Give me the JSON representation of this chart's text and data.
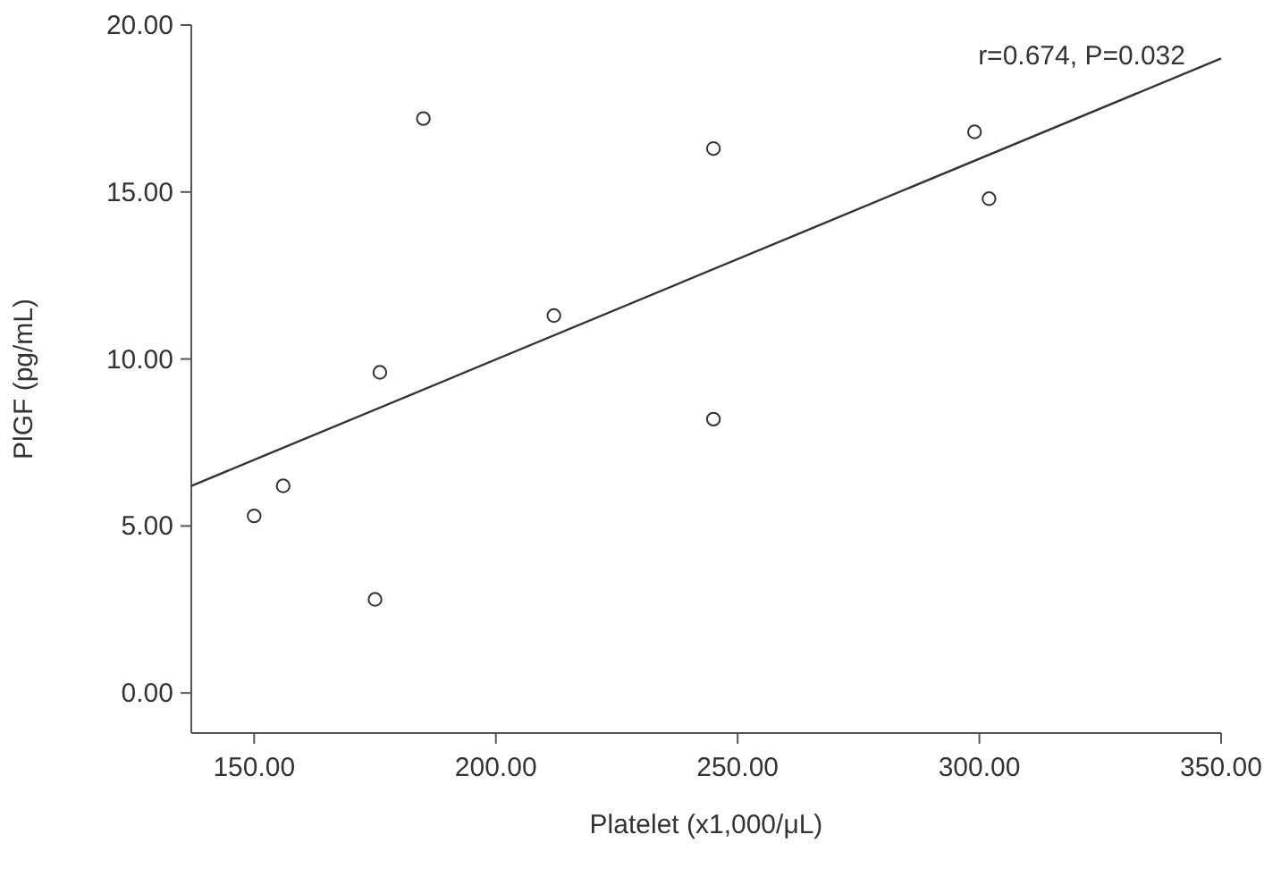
{
  "chart_data": {
    "type": "scatter",
    "xlabel": "Platelet (x1,000/μL)",
    "ylabel": "PlGF (pg/mL)",
    "xlim": [
      137,
      350
    ],
    "ylim": [
      -1.2,
      20
    ],
    "xticks": [
      {
        "value": 150,
        "label": "150.00"
      },
      {
        "value": 200,
        "label": "200.00"
      },
      {
        "value": 250,
        "label": "250.00"
      },
      {
        "value": 300,
        "label": "300.00"
      },
      {
        "value": 350,
        "label": "350.00"
      }
    ],
    "yticks": [
      {
        "value": 0,
        "label": "0.00"
      },
      {
        "value": 5,
        "label": "5.00"
      },
      {
        "value": 10,
        "label": "10.00"
      },
      {
        "value": 15,
        "label": "15.00"
      },
      {
        "value": 20,
        "label": "20.00"
      }
    ],
    "series": [
      {
        "color": "#333333",
        "marker": "circle",
        "x": [
          150,
          156,
          175,
          176,
          185,
          212,
          245,
          245,
          299,
          302
        ],
        "values": [
          5.3,
          6.2,
          2.8,
          9.6,
          17.2,
          11.3,
          16.3,
          8.2,
          16.8,
          14.8
        ]
      },
      {
        "type": "line",
        "color": "#333333",
        "x": [
          137,
          350
        ],
        "values": [
          6.2,
          19.0
        ]
      }
    ],
    "annotations": [
      "r=0.674, P=0.032"
    ],
    "grid": false
  }
}
